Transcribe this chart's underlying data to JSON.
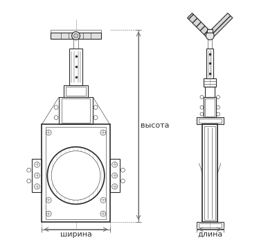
{
  "bg_color": "#ffffff",
  "line_color": "#2a2a2a",
  "dim_line_color": "#666666",
  "label_color": "#333333",
  "labels": {
    "width": "ширина",
    "height": "высота",
    "length": "длина"
  },
  "font_size": 8,
  "fig_width": 4.0,
  "fig_height": 3.46,
  "dpi": 100
}
